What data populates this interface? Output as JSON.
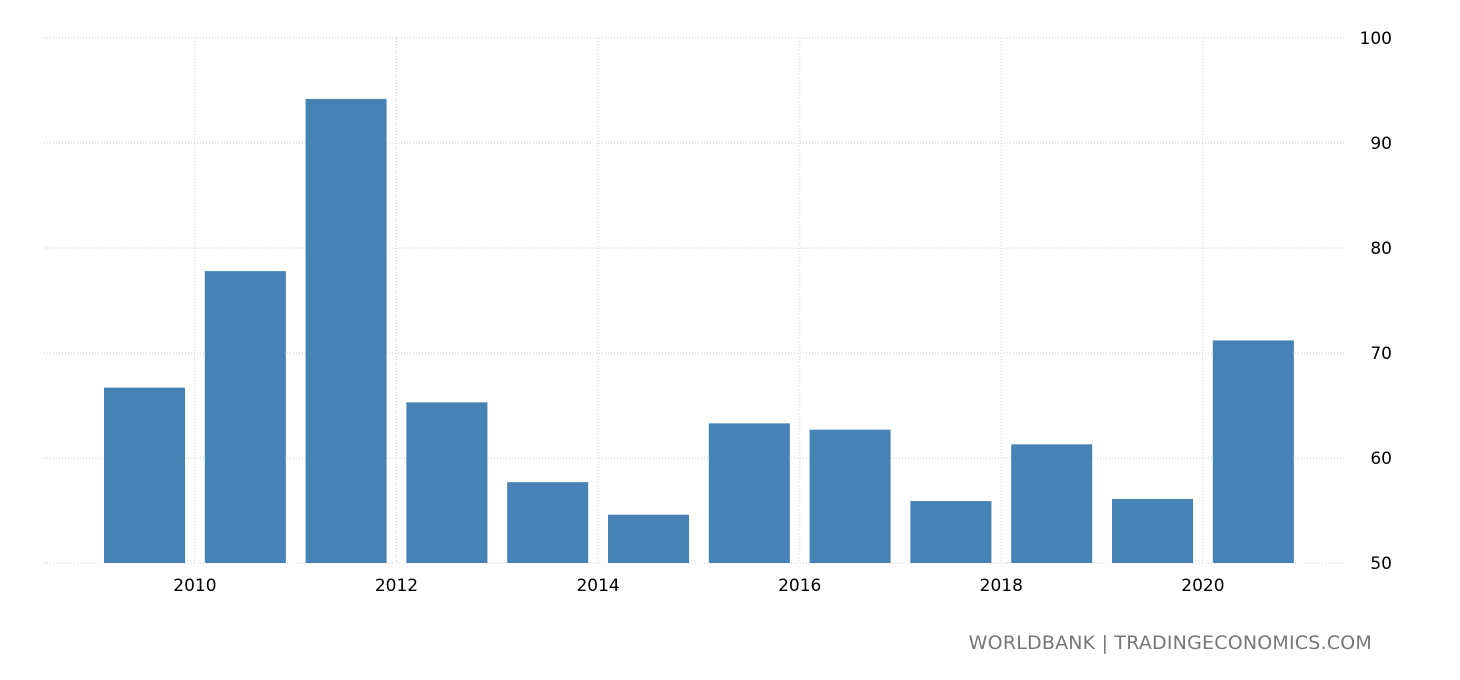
{
  "chart_data": {
    "type": "bar",
    "categories": [
      "2009",
      "2010",
      "2011",
      "2012",
      "2013",
      "2014",
      "2015",
      "2016",
      "2017",
      "2018",
      "2019",
      "2020"
    ],
    "values": [
      66.7,
      77.8,
      94.2,
      65.3,
      57.7,
      54.6,
      63.3,
      62.7,
      55.9,
      61.3,
      56.1,
      71.2
    ],
    "title": "",
    "xlabel": "",
    "ylabel": "",
    "ylim": [
      50,
      100
    ],
    "y_ticks": [
      "50",
      "60",
      "70",
      "80",
      "90",
      "100"
    ],
    "x_tick_labels": [
      "2010",
      "2012",
      "2014",
      "2016",
      "2018",
      "2020"
    ],
    "bar_color": "#4682b4",
    "grid": true,
    "y_axis_position": "right"
  },
  "source": "WORLDBANK | TRADINGECONOMICS.COM"
}
